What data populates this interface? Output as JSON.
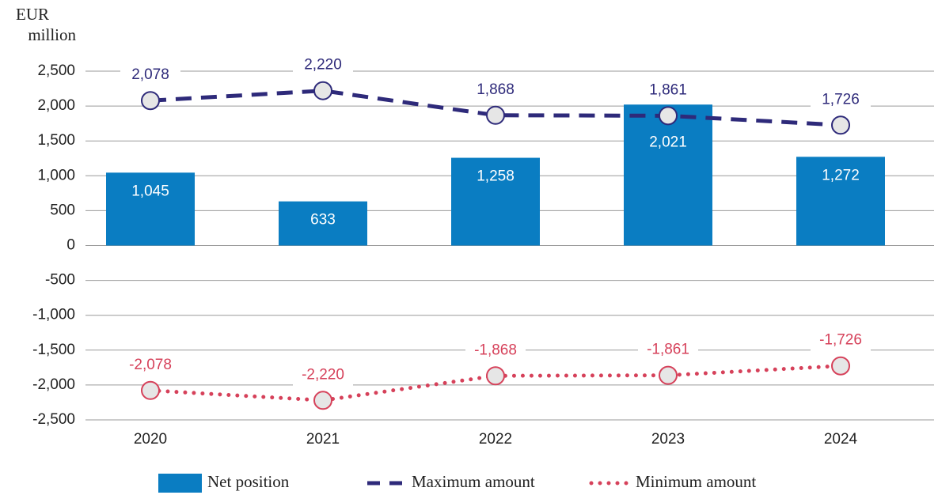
{
  "chart_data": {
    "type": "bar_line",
    "y_label_lines": [
      "EUR",
      "million"
    ],
    "categories": [
      "2020",
      "2021",
      "2022",
      "2023",
      "2024"
    ],
    "ylim": [
      -2500,
      2500
    ],
    "yticks": [
      {
        "value": 2500,
        "label": "2,500"
      },
      {
        "value": 2000,
        "label": "2,000"
      },
      {
        "value": 1500,
        "label": "1,500"
      },
      {
        "value": 1000,
        "label": "1,000"
      },
      500,
      0,
      -500,
      {
        "value": -1000,
        "label": "-1,000"
      },
      {
        "value": -1500,
        "label": "-1,500"
      },
      {
        "value": -2000,
        "label": "-2,000"
      },
      {
        "value": -2500,
        "label": "-2,500"
      }
    ],
    "grid": true,
    "series": [
      {
        "name": "Net position",
        "kind": "bar",
        "color": "#0a7dc2",
        "values": [
          1045,
          633,
          1258,
          2021,
          1272
        ],
        "value_labels": [
          "1,045",
          "633",
          "1,258",
          "2,021",
          "1,272"
        ]
      },
      {
        "name": "Maximum amount",
        "kind": "dashed",
        "color": "#2e2a7a",
        "values": [
          2078,
          2220,
          1868,
          1861,
          1726
        ],
        "value_labels": [
          "2,078",
          "2,220",
          "1,868",
          "1,861",
          "1,726"
        ]
      },
      {
        "name": "Minimum amount",
        "kind": "dotted",
        "color": "#d6415a",
        "values": [
          -2078,
          -2220,
          -1868,
          -1861,
          -1726
        ],
        "value_labels": [
          "-2,078",
          "-2,220",
          "-1,868",
          "-1,861",
          "-1,726"
        ]
      }
    ]
  }
}
